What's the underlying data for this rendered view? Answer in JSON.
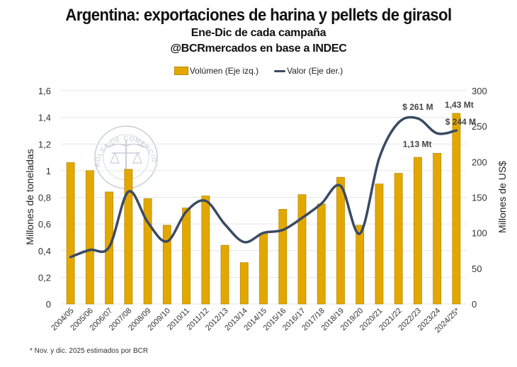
{
  "chart_data": {
    "type": "bar",
    "title": "Argentina: exportaciones de harina y pellets de girasol",
    "subtitle": "Ene-Dic de cada campaña",
    "source": "@BCRmercados en base a INDEC",
    "categories": [
      "2004/05",
      "2005/06",
      "2006/07",
      "2007/08",
      "2008/09",
      "2009/10",
      "2010/11",
      "2011/12",
      "2012/13",
      "2013/14",
      "2014/15",
      "2015/16",
      "2016/17",
      "2017/18",
      "2018/19",
      "2019/20",
      "2020/21",
      "2021/22",
      "2022/23",
      "2023/24",
      "2024/25*"
    ],
    "series": [
      {
        "name": "Volúmen (Eje izq.)",
        "type": "bar",
        "axis": "left",
        "color": "#E3A800",
        "values": [
          1.06,
          1.0,
          0.84,
          1.01,
          0.79,
          0.59,
          0.72,
          0.81,
          0.44,
          0.31,
          0.53,
          0.71,
          0.82,
          0.75,
          0.95,
          0.59,
          0.9,
          0.98,
          1.1,
          1.13,
          1.43
        ]
      },
      {
        "name": "Valor (Eje der.)",
        "type": "line",
        "axis": "right",
        "color": "#3A4A63",
        "values": [
          66,
          76,
          80,
          158,
          115,
          88,
          130,
          145,
          112,
          87,
          100,
          104,
          121,
          141,
          166,
          99,
          205,
          255,
          261,
          240,
          244
        ]
      }
    ],
    "ylabel": "Millones de toneladas",
    "ylim": [
      0,
      1.6
    ],
    "yticks": [
      "0",
      "0,2",
      "0,4",
      "0,6",
      "0,8",
      "1",
      "1,2",
      "1,4",
      "1,6"
    ],
    "y2label": "Millones de US$",
    "y2lim": [
      0,
      300
    ],
    "y2ticks": [
      "0",
      "50",
      "100",
      "150",
      "200",
      "250",
      "300"
    ],
    "grid": true,
    "legend_position": "top-center",
    "annotations": [
      {
        "text": "$ 261 M",
        "series": 1,
        "index": 18
      },
      {
        "text": "$ 244 M",
        "series": 1,
        "index": 20
      },
      {
        "text": "1,43 Mt",
        "series": 0,
        "index": 20
      },
      {
        "text": "1,13 Mt",
        "series": 0,
        "index": 19
      }
    ],
    "footnote": "* Nov. y dic. 2025 estimados por BCR",
    "watermark": "BOLSA DE COMERCIO DE ROSARIO"
  }
}
